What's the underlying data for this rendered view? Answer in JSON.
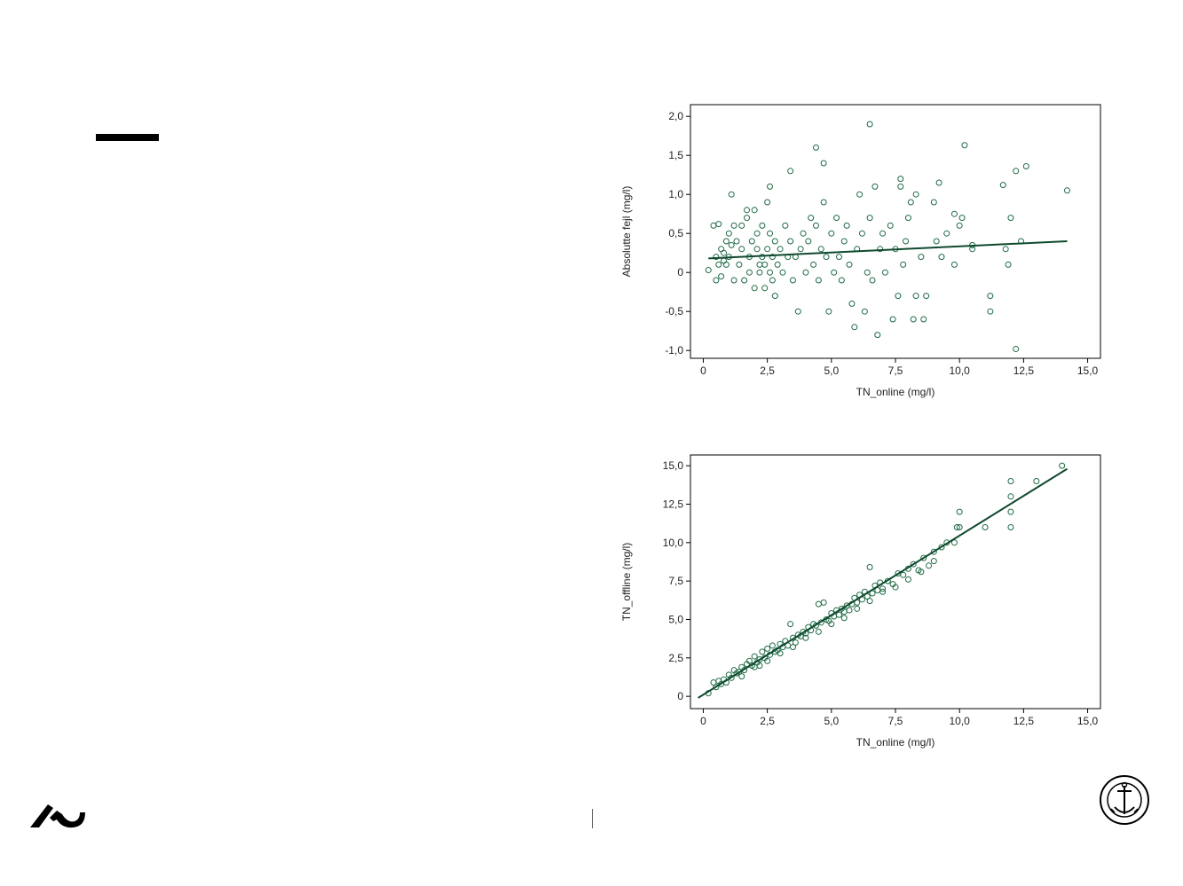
{
  "colors": {
    "accent": "#1f6b45",
    "line": "#0f4a2e",
    "frame": "#000000"
  },
  "icons": {
    "logo": "au-logo-icon",
    "seal": "university-seal-icon"
  },
  "chart_data": [
    {
      "type": "scatter",
      "xlabel": "TN_online (mg/l)",
      "ylabel": "Absolutte fejl (mg/l)",
      "xlim": [
        -0.5,
        15.5
      ],
      "ylim": [
        -1.1,
        2.15
      ],
      "x_ticks": [
        0,
        2.5,
        5,
        7.5,
        10,
        12.5,
        15
      ],
      "x_tick_labels": [
        "0",
        "2,5",
        "5,0",
        "7,5",
        "10,0",
        "12,5",
        "15,0"
      ],
      "y_ticks": [
        2,
        1.5,
        1,
        0.5,
        0,
        -0.5,
        -1
      ],
      "y_tick_labels": [
        "2,0",
        "1,5",
        "1,0",
        "0,5",
        "0",
        "-0,5",
        "-1,0"
      ],
      "grid": false,
      "fit_line": {
        "x": [
          0.2,
          14.2
        ],
        "y": [
          0.18,
          0.4
        ]
      },
      "points": [
        [
          0.2,
          0.03
        ],
        [
          0.4,
          0.6
        ],
        [
          0.5,
          0.2
        ],
        [
          0.5,
          -0.1
        ],
        [
          0.6,
          0.62
        ],
        [
          0.6,
          0.1
        ],
        [
          0.7,
          0.3
        ],
        [
          0.7,
          -0.05
        ],
        [
          0.8,
          0.15
        ],
        [
          0.8,
          0.25
        ],
        [
          0.9,
          0.1
        ],
        [
          0.9,
          0.4
        ],
        [
          1.0,
          0.5
        ],
        [
          1.0,
          0.2
        ],
        [
          1.1,
          1.0
        ],
        [
          1.1,
          0.35
        ],
        [
          1.2,
          0.6
        ],
        [
          1.2,
          -0.1
        ],
        [
          1.3,
          0.4
        ],
        [
          1.4,
          0.1
        ],
        [
          1.5,
          0.3
        ],
        [
          1.5,
          0.6
        ],
        [
          1.6,
          -0.1
        ],
        [
          1.7,
          0.7
        ],
        [
          1.7,
          0.8
        ],
        [
          1.8,
          0.2
        ],
        [
          1.8,
          0.0
        ],
        [
          1.9,
          0.4
        ],
        [
          2.0,
          0.8
        ],
        [
          2.0,
          -0.2
        ],
        [
          2.1,
          0.3
        ],
        [
          2.1,
          0.5
        ],
        [
          2.2,
          0.0
        ],
        [
          2.2,
          0.1
        ],
        [
          2.3,
          0.2
        ],
        [
          2.3,
          0.6
        ],
        [
          2.4,
          0.1
        ],
        [
          2.4,
          -0.2
        ],
        [
          2.5,
          0.9
        ],
        [
          2.5,
          0.3
        ],
        [
          2.6,
          1.1
        ],
        [
          2.6,
          0.0
        ],
        [
          2.6,
          0.5
        ],
        [
          2.7,
          0.2
        ],
        [
          2.7,
          -0.1
        ],
        [
          2.8,
          0.4
        ],
        [
          2.8,
          -0.3
        ],
        [
          2.9,
          0.1
        ],
        [
          3.0,
          0.3
        ],
        [
          3.1,
          0.0
        ],
        [
          3.2,
          0.6
        ],
        [
          3.3,
          0.2
        ],
        [
          3.4,
          1.3
        ],
        [
          3.4,
          0.4
        ],
        [
          3.5,
          -0.1
        ],
        [
          3.6,
          0.2
        ],
        [
          3.7,
          -0.5
        ],
        [
          3.8,
          0.3
        ],
        [
          3.9,
          0.5
        ],
        [
          4.0,
          0.0
        ],
        [
          4.1,
          0.4
        ],
        [
          4.2,
          0.7
        ],
        [
          4.3,
          0.1
        ],
        [
          4.4,
          1.6
        ],
        [
          4.4,
          0.6
        ],
        [
          4.5,
          -0.1
        ],
        [
          4.6,
          0.3
        ],
        [
          4.7,
          1.4
        ],
        [
          4.7,
          0.9
        ],
        [
          4.8,
          0.2
        ],
        [
          4.9,
          -0.5
        ],
        [
          5.0,
          0.5
        ],
        [
          5.1,
          0.0
        ],
        [
          5.2,
          0.7
        ],
        [
          5.3,
          0.2
        ],
        [
          5.4,
          -0.1
        ],
        [
          5.5,
          0.4
        ],
        [
          5.6,
          0.6
        ],
        [
          5.7,
          0.1
        ],
        [
          5.8,
          -0.4
        ],
        [
          5.9,
          -0.7
        ],
        [
          6.0,
          0.3
        ],
        [
          6.1,
          1.0
        ],
        [
          6.2,
          0.5
        ],
        [
          6.3,
          -0.5
        ],
        [
          6.4,
          0.0
        ],
        [
          6.5,
          1.9
        ],
        [
          6.5,
          0.7
        ],
        [
          6.6,
          -0.1
        ],
        [
          6.7,
          1.1
        ],
        [
          6.8,
          -0.8
        ],
        [
          6.9,
          0.3
        ],
        [
          7.0,
          0.5
        ],
        [
          7.1,
          0.0
        ],
        [
          7.3,
          0.6
        ],
        [
          7.4,
          -0.6
        ],
        [
          7.5,
          0.3
        ],
        [
          7.6,
          -0.3
        ],
        [
          7.7,
          1.2
        ],
        [
          7.7,
          1.1
        ],
        [
          7.8,
          0.1
        ],
        [
          7.9,
          0.4
        ],
        [
          8.0,
          0.7
        ],
        [
          8.1,
          0.9
        ],
        [
          8.2,
          -0.6
        ],
        [
          8.3,
          1.0
        ],
        [
          8.3,
          -0.3
        ],
        [
          8.5,
          0.2
        ],
        [
          8.6,
          -0.6
        ],
        [
          8.7,
          -0.3
        ],
        [
          9.0,
          0.9
        ],
        [
          9.1,
          0.4
        ],
        [
          9.2,
          1.15
        ],
        [
          9.3,
          0.2
        ],
        [
          9.5,
          0.5
        ],
        [
          9.8,
          0.1
        ],
        [
          9.8,
          0.75
        ],
        [
          10.0,
          0.6
        ],
        [
          10.1,
          0.7
        ],
        [
          10.2,
          1.63
        ],
        [
          10.5,
          0.35
        ],
        [
          10.5,
          0.3
        ],
        [
          11.2,
          -0.3
        ],
        [
          11.2,
          -0.5
        ],
        [
          11.7,
          1.12
        ],
        [
          11.8,
          0.3
        ],
        [
          11.9,
          0.1
        ],
        [
          12.0,
          0.7
        ],
        [
          12.2,
          1.3
        ],
        [
          12.2,
          -0.98
        ],
        [
          12.4,
          0.4
        ],
        [
          12.6,
          1.36
        ],
        [
          14.2,
          1.05
        ]
      ]
    },
    {
      "type": "scatter",
      "xlabel": "TN_online (mg/l)",
      "ylabel": "TN_offline (mg/l)",
      "xlim": [
        -0.5,
        15.5
      ],
      "ylim": [
        -0.8,
        15.7
      ],
      "x_ticks": [
        0,
        2.5,
        5,
        7.5,
        10,
        12.5,
        15
      ],
      "x_tick_labels": [
        "0",
        "2,5",
        "5,0",
        "7,5",
        "10,0",
        "12,5",
        "15,0"
      ],
      "y_ticks": [
        15,
        12.5,
        10,
        7.5,
        5,
        2.5,
        0
      ],
      "y_tick_labels": [
        "15,0",
        "12,5",
        "10,0",
        "7,5",
        "5,0",
        "2,5",
        "0"
      ],
      "grid": false,
      "fit_line": {
        "x": [
          -0.2,
          14.2
        ],
        "y": [
          -0.1,
          14.8
        ]
      },
      "points": [
        [
          0.2,
          0.2
        ],
        [
          0.4,
          0.9
        ],
        [
          0.5,
          0.6
        ],
        [
          0.6,
          1.0
        ],
        [
          0.7,
          0.8
        ],
        [
          0.8,
          1.1
        ],
        [
          0.9,
          0.9
        ],
        [
          1.0,
          1.4
        ],
        [
          1.1,
          1.2
        ],
        [
          1.2,
          1.7
        ],
        [
          1.3,
          1.5
        ],
        [
          1.4,
          1.6
        ],
        [
          1.5,
          1.9
        ],
        [
          1.6,
          1.7
        ],
        [
          1.7,
          2.1
        ],
        [
          1.8,
          2.3
        ],
        [
          1.9,
          2.0
        ],
        [
          2.0,
          2.6
        ],
        [
          2.1,
          2.2
        ],
        [
          2.2,
          2.4
        ],
        [
          2.3,
          2.9
        ],
        [
          2.4,
          2.5
        ],
        [
          2.5,
          3.1
        ],
        [
          2.6,
          2.7
        ],
        [
          2.7,
          3.3
        ],
        [
          2.8,
          2.9
        ],
        [
          2.9,
          3.0
        ],
        [
          3.0,
          3.4
        ],
        [
          3.1,
          3.2
        ],
        [
          3.2,
          3.6
        ],
        [
          3.3,
          3.3
        ],
        [
          3.4,
          4.7
        ],
        [
          3.5,
          3.8
        ],
        [
          3.6,
          3.5
        ],
        [
          3.7,
          4.0
        ],
        [
          3.8,
          3.9
        ],
        [
          3.9,
          4.2
        ],
        [
          4.0,
          4.1
        ],
        [
          4.1,
          4.5
        ],
        [
          4.2,
          4.3
        ],
        [
          4.3,
          4.7
        ],
        [
          4.4,
          4.6
        ],
        [
          4.5,
          6.0
        ],
        [
          4.6,
          4.8
        ],
        [
          4.7,
          6.1
        ],
        [
          4.8,
          5.0
        ],
        [
          4.9,
          4.9
        ],
        [
          5.0,
          5.4
        ],
        [
          5.1,
          5.2
        ],
        [
          5.2,
          5.6
        ],
        [
          5.3,
          5.3
        ],
        [
          5.4,
          5.7
        ],
        [
          5.5,
          5.5
        ],
        [
          5.6,
          5.9
        ],
        [
          5.7,
          5.6
        ],
        [
          5.8,
          6.0
        ],
        [
          5.9,
          6.4
        ],
        [
          6.0,
          6.1
        ],
        [
          6.1,
          6.6
        ],
        [
          6.2,
          6.3
        ],
        [
          6.3,
          6.8
        ],
        [
          6.4,
          6.5
        ],
        [
          6.5,
          8.4
        ],
        [
          6.6,
          6.7
        ],
        [
          6.7,
          7.2
        ],
        [
          6.8,
          6.9
        ],
        [
          6.9,
          7.4
        ],
        [
          7.0,
          7.0
        ],
        [
          7.2,
          7.5
        ],
        [
          7.4,
          7.3
        ],
        [
          7.6,
          8.0
        ],
        [
          7.8,
          7.9
        ],
        [
          8.0,
          8.3
        ],
        [
          8.2,
          8.6
        ],
        [
          8.4,
          8.2
        ],
        [
          8.6,
          9.0
        ],
        [
          8.8,
          8.5
        ],
        [
          9.0,
          9.4
        ],
        [
          9.3,
          9.7
        ],
        [
          9.5,
          10.0
        ],
        [
          9.8,
          10.0
        ],
        [
          9.9,
          11.0
        ],
        [
          10.0,
          12.0
        ],
        [
          10.0,
          11.0
        ],
        [
          11.0,
          11.0
        ],
        [
          12.0,
          14.0
        ],
        [
          12.0,
          13.0
        ],
        [
          12.0,
          12.0
        ],
        [
          12.0,
          11.0
        ],
        [
          13.0,
          14.0
        ],
        [
          14.0,
          15.0
        ],
        [
          2.5,
          2.3
        ],
        [
          3.0,
          2.8
        ],
        [
          4.0,
          3.8
        ],
        [
          5.0,
          4.7
        ],
        [
          6.0,
          5.7
        ],
        [
          7.0,
          6.8
        ],
        [
          8.0,
          7.6
        ],
        [
          1.5,
          1.3
        ],
        [
          2.0,
          1.9
        ],
        [
          5.5,
          5.1
        ],
        [
          6.5,
          6.2
        ],
        [
          7.5,
          7.1
        ],
        [
          8.5,
          8.1
        ],
        [
          9.0,
          8.8
        ],
        [
          4.5,
          4.2
        ],
        [
          3.5,
          3.2
        ],
        [
          2.2,
          2.0
        ]
      ]
    }
  ]
}
